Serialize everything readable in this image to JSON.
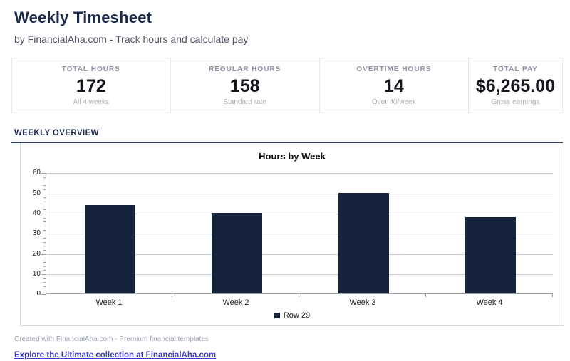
{
  "header": {
    "title": "Weekly Timesheet",
    "subtitle": "by FinancialAha.com - Track hours and calculate pay"
  },
  "stats": [
    {
      "label": "TOTAL HOURS",
      "value": "172",
      "sub": "All 4 weeks"
    },
    {
      "label": "REGULAR HOURS",
      "value": "158",
      "sub": "Standard rate"
    },
    {
      "label": "OVERTIME HOURS",
      "value": "14",
      "sub": "Over 40/week"
    },
    {
      "label": "TOTAL PAY",
      "value": "$6,265.00",
      "sub": "Gross earnings"
    }
  ],
  "section": {
    "title": "WEEKLY OVERVIEW"
  },
  "chart_data": {
    "type": "bar",
    "title": "Hours by Week",
    "categories": [
      "Week 1",
      "Week 2",
      "Week 3",
      "Week 4"
    ],
    "series": [
      {
        "name": "Row 29",
        "values": [
          44,
          40,
          50,
          38
        ]
      }
    ],
    "xlabel": "",
    "ylabel": "",
    "ylim": [
      0,
      60
    ],
    "ytick_step": 10,
    "minor_tick_step": 2,
    "grid": true,
    "legend_position": "bottom",
    "bar_color": "#16233d",
    "gridline_color": "#cdcfd2",
    "axis_color": "#9aa0a6"
  },
  "footer": {
    "credit": "Created with FinancialAha.com - Premium financial templates",
    "link": "Explore the Ultimate collection at FinancialAha.com"
  },
  "colors": {
    "navy": "#1b2a4b",
    "bar": "#16233d",
    "link": "#3b3fc6"
  }
}
